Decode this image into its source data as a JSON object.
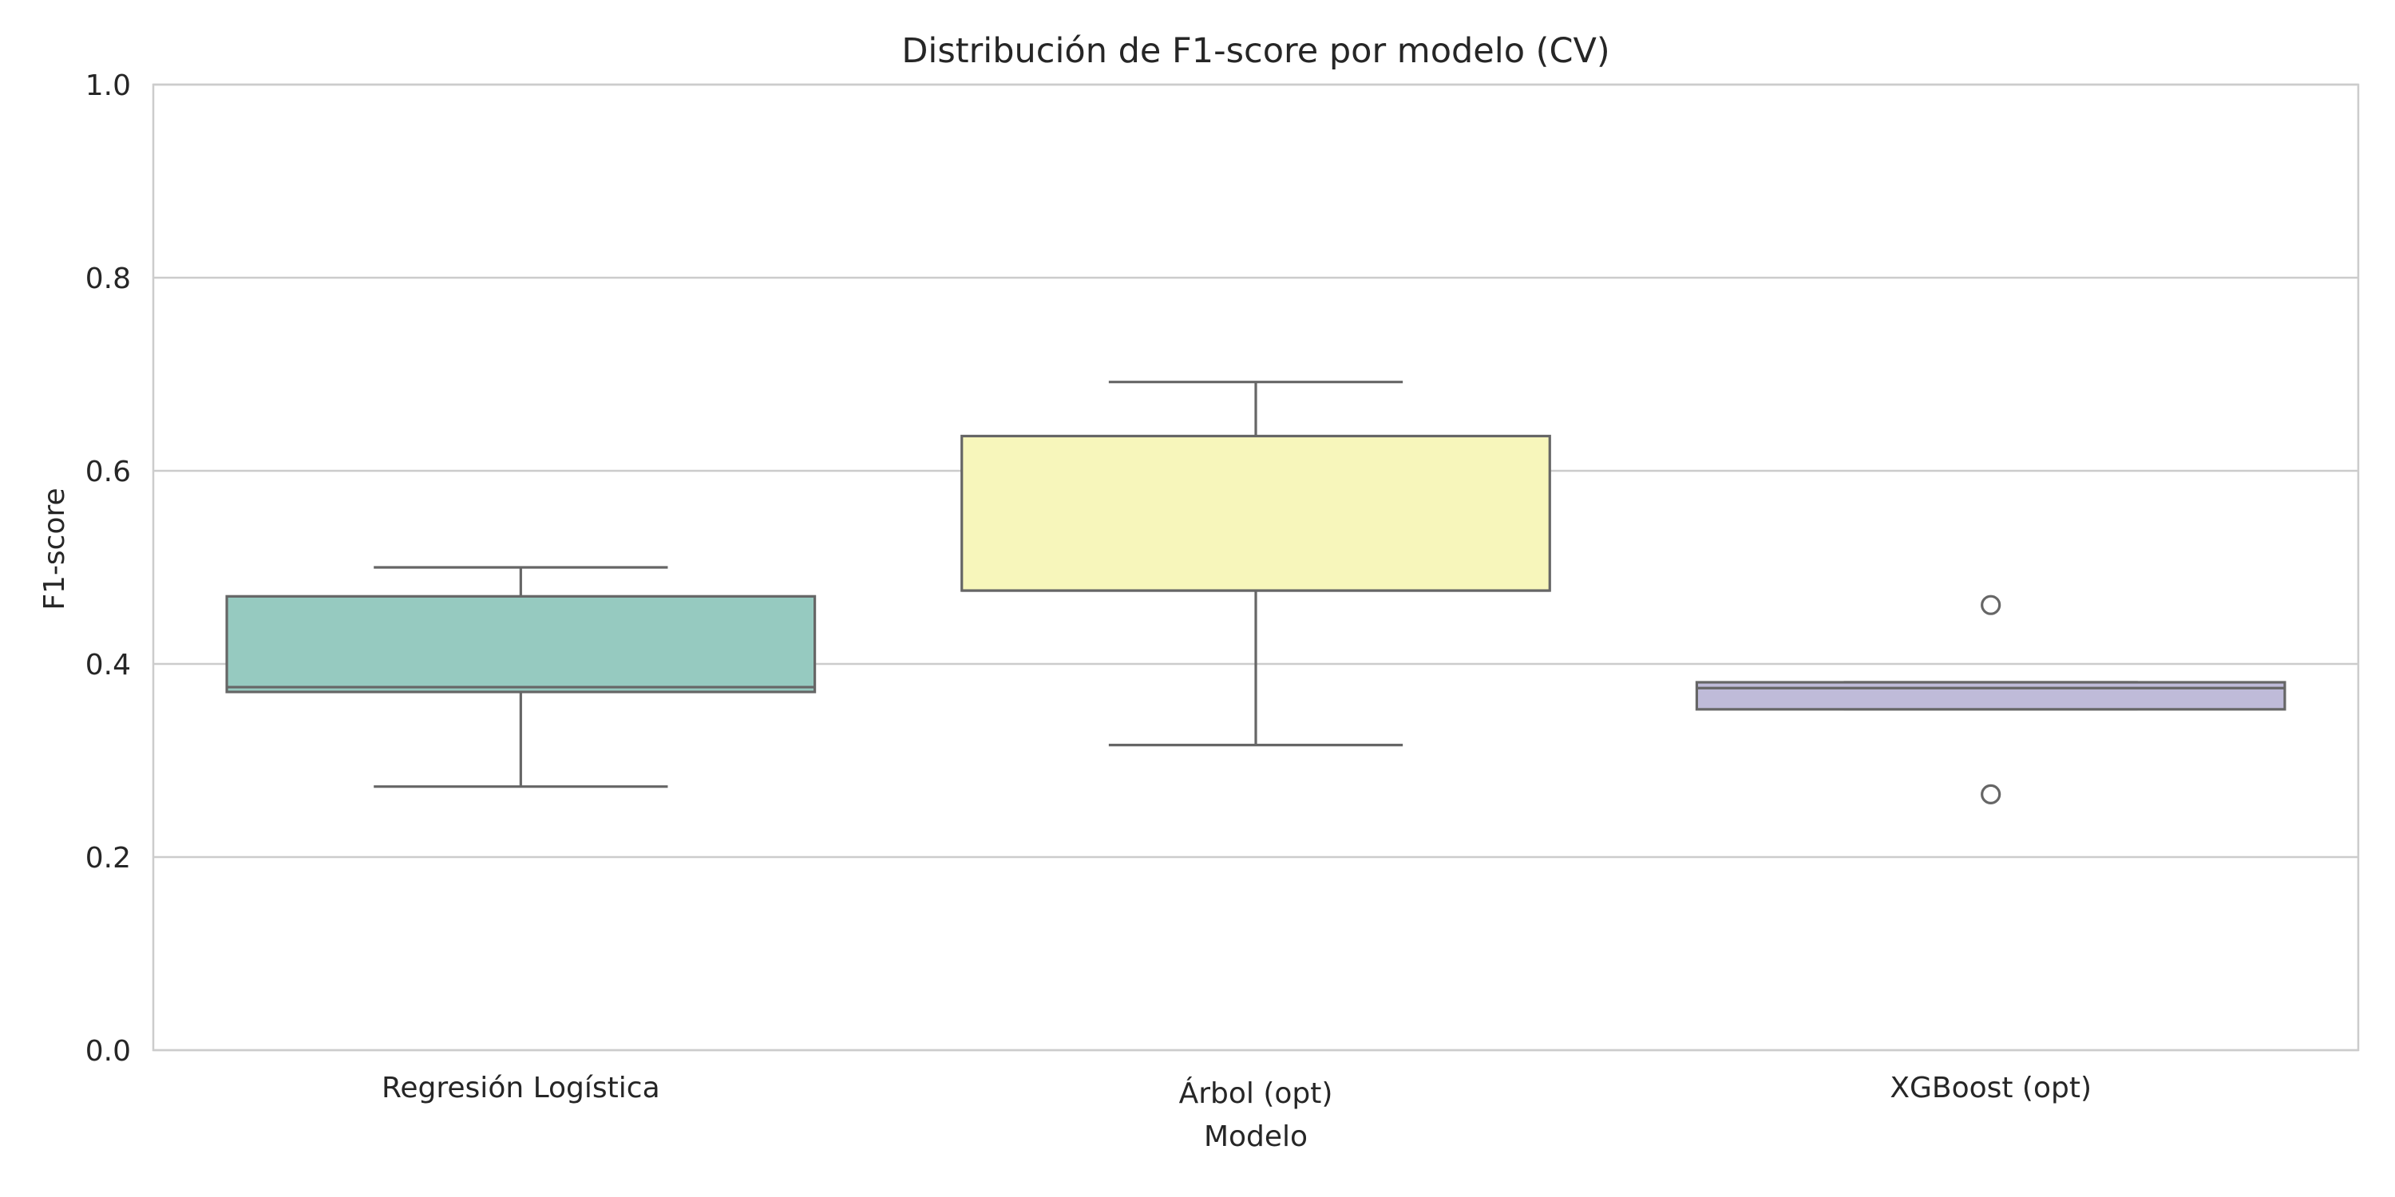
{
  "chart_data": {
    "type": "box",
    "title": "Distribución de F1-score por modelo (CV)",
    "xlabel": "Modelo",
    "ylabel": "F1-score",
    "ylim": [
      0,
      1
    ],
    "yticks": [
      "0.0",
      "0.2",
      "0.4",
      "0.6",
      "0.8",
      "1.0"
    ],
    "grid": "horizontal",
    "categories": [
      "Regresión Logística",
      "Árbol (opt)",
      "XGBoost (opt)"
    ],
    "boxes": [
      {
        "category": "Regresión Logística",
        "whisker_low": 0.273,
        "q1": 0.371,
        "median": 0.376,
        "q3": 0.47,
        "whisker_high": 0.5,
        "outliers": [],
        "color": "#96cac0"
      },
      {
        "category": "Árbol (opt)",
        "whisker_low": 0.316,
        "q1": 0.476,
        "median": 0.476,
        "q3": 0.636,
        "whisker_high": 0.692,
        "outliers": [],
        "color": "#f7f6bb"
      },
      {
        "category": "XGBoost (opt)",
        "whisker_low": 0.353,
        "q1": 0.353,
        "median": 0.375,
        "q3": 0.381,
        "whisker_high": 0.381,
        "outliers": [
          0.461,
          0.265
        ],
        "color": "#bfbbd9"
      }
    ]
  }
}
